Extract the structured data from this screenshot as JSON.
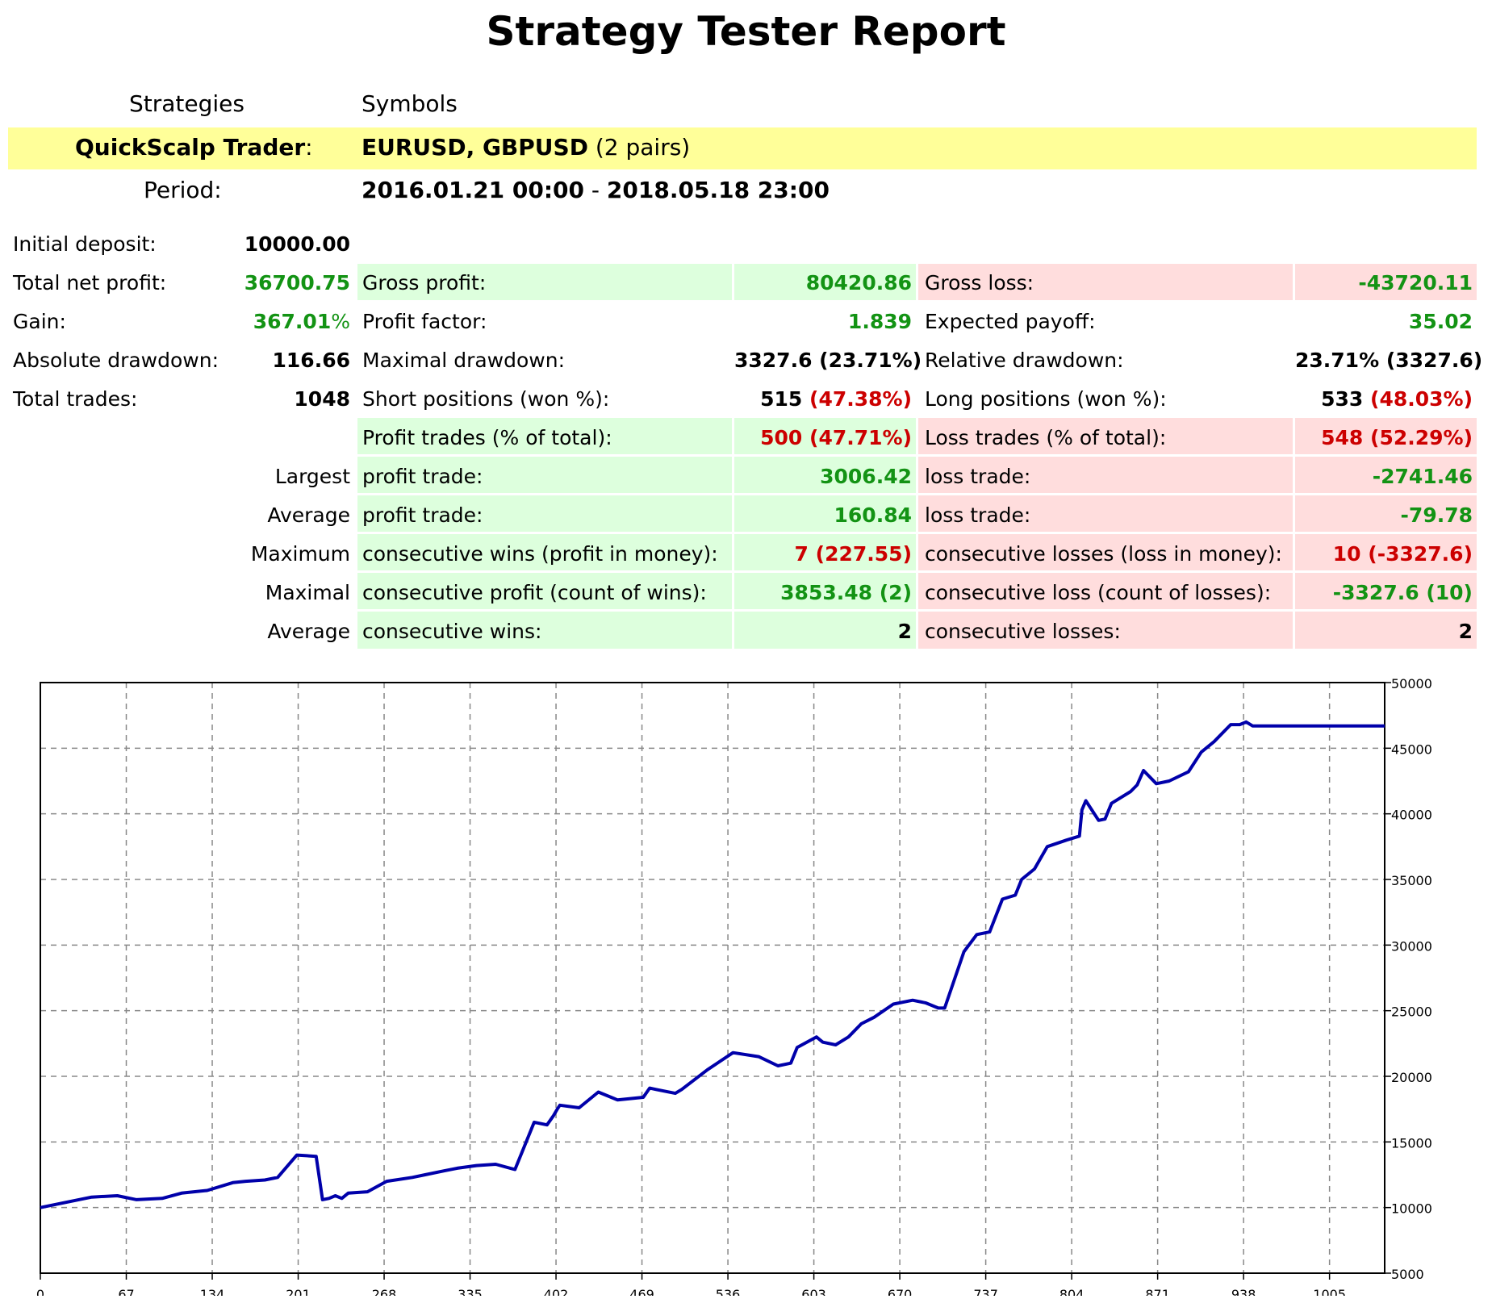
{
  "title": "Strategy Tester Report",
  "header": {
    "col1": "Strategies",
    "col2": "Symbols",
    "strategy_name": "QuickScalp Trader",
    "strategy_colon": ":",
    "symbols_bold": "EURUSD, GBPUSD",
    "symbols_rest": " (2 pairs)",
    "period_label": "Period:",
    "period_start": "2016.01.21 00:00",
    "period_sep": " - ",
    "period_end": "2018.05.18 23:00"
  },
  "stats": {
    "initial_deposit": {
      "label": "Initial deposit:",
      "value": "10000.00"
    },
    "total_net_profit": {
      "label": "Total net profit:",
      "value": "36700.75"
    },
    "gain": {
      "label": "Gain:",
      "value": "367.01",
      "suffix": "%"
    },
    "absolute_drawdown": {
      "label": "Absolute drawdown:",
      "value": "116.66"
    },
    "total_trades": {
      "label": "Total trades:",
      "value": "1048"
    },
    "gross_profit": {
      "label": "Gross profit:",
      "value": "80420.86"
    },
    "gross_loss": {
      "label": "Gross loss:",
      "value": "-43720.11"
    },
    "profit_factor": {
      "label": "Profit factor:",
      "value": "1.839"
    },
    "expected_payoff": {
      "label": "Expected payoff:",
      "value": "35.02"
    },
    "maximal_drawdown": {
      "label": "Maximal drawdown:",
      "value": "3327.6 (23.71%)"
    },
    "relative_drawdown": {
      "label": "Relative drawdown:",
      "value": "23.71% (3327.6)"
    },
    "short_positions": {
      "label": "Short positions (won %):",
      "count": "515",
      "pct": "(47.38%)"
    },
    "long_positions": {
      "label": "Long positions (won %):",
      "count": "533",
      "pct": "(48.03%)"
    },
    "profit_trades": {
      "label": "Profit trades (% of total):",
      "count": "500",
      "pct": "(47.71%)"
    },
    "loss_trades": {
      "label": "Loss trades (% of total):",
      "count": "548",
      "pct": "(52.29%)"
    },
    "largest": {
      "prefix": "Largest",
      "profit_label": "profit trade:",
      "profit_value": "3006.42",
      "loss_label": "loss trade:",
      "loss_value": "-2741.46"
    },
    "average": {
      "prefix": "Average",
      "profit_label": "profit trade:",
      "profit_value": "160.84",
      "loss_label": "loss trade:",
      "loss_value": "-79.78"
    },
    "maximum": {
      "prefix": "Maximum",
      "wins_label": "consecutive wins (profit in money):",
      "wins_count": "7",
      "wins_money": "(227.55)",
      "losses_label": "consecutive losses (loss in money):",
      "losses_count": "10",
      "losses_money": "(-3327.6)"
    },
    "maximal": {
      "prefix": "Maximal",
      "profit_label": "consecutive profit (count of wins):",
      "profit_money": "3853.48",
      "profit_count": "(2)",
      "loss_label": "consecutive loss (count of losses):",
      "loss_money": "-3327.6",
      "loss_count": "(10)"
    },
    "average_consecutive": {
      "prefix": "Average",
      "wins_label": "consecutive wins:",
      "wins_value": "2",
      "losses_label": "consecutive losses:",
      "losses_value": "2"
    }
  },
  "chart_data": {
    "type": "line",
    "xlim": [
      0,
      1048
    ],
    "ylim": [
      5000,
      50000
    ],
    "x_ticks": [
      "0",
      "67",
      "134",
      "201",
      "268",
      "335",
      "402",
      "469",
      "536",
      "603",
      "670",
      "737",
      "804",
      "871",
      "938",
      "1005"
    ],
    "y_ticks": [
      "5000",
      "10000",
      "15000",
      "20000",
      "25000",
      "30000",
      "35000",
      "40000",
      "45000",
      "50000"
    ],
    "grid": true,
    "color": "#0000aa",
    "series": [
      {
        "x": [
          0,
          15,
          40,
          60,
          75,
          95,
          110,
          130,
          150,
          160,
          175,
          185,
          200,
          215,
          220,
          225,
          230,
          235,
          240,
          255,
          270,
          290,
          300,
          315,
          325,
          340,
          355,
          370,
          385,
          395,
          400,
          403,
          405,
          420,
          435,
          450,
          470,
          475,
          480,
          495,
          500,
          520,
          540,
          560,
          575,
          585,
          590,
          605,
          610,
          620,
          630,
          640,
          650,
          665,
          680,
          690,
          700,
          705,
          720,
          730,
          740,
          750,
          760,
          765,
          775,
          785,
          800,
          810,
          812,
          815,
          825,
          830,
          835,
          850,
          855,
          860,
          870,
          880,
          895,
          905,
          915,
          925,
          928,
          935,
          940,
          945,
          950,
          957,
          960,
          965,
          975,
          985,
          990,
          1000,
          1005,
          1010,
          1020,
          1030,
          1035,
          1048
        ],
        "y": [
          10000,
          10300,
          10800,
          10900,
          10600,
          10700,
          11100,
          11300,
          11900,
          12000,
          12100,
          12300,
          14000,
          13900,
          10600,
          10700,
          10900,
          10700,
          11100,
          11200,
          12000,
          12300,
          12500,
          12800,
          13000,
          13200,
          13300,
          12900,
          16500,
          16300,
          17000,
          17500,
          17800,
          17600,
          18800,
          18200,
          18400,
          19100,
          19000,
          18700,
          19000,
          20500,
          21800,
          21500,
          20800,
          21000,
          22200,
          23000,
          22600,
          22400,
          23000,
          24000,
          24500,
          25500,
          25800,
          25600,
          25200,
          25200,
          29500,
          30800,
          31000,
          33500,
          33800,
          35000,
          35800,
          37500,
          38000,
          38300,
          40300,
          41000,
          39500,
          39600,
          40800,
          41700,
          42200,
          43300,
          42300,
          42500,
          43200,
          44700,
          45500,
          46500,
          46800,
          46800,
          47000,
          46700,
          46700,
          46700,
          46700,
          46700,
          46700,
          46700,
          46700,
          46700,
          46700,
          46700,
          46700,
          46700,
          46700,
          46700
        ]
      }
    ]
  }
}
